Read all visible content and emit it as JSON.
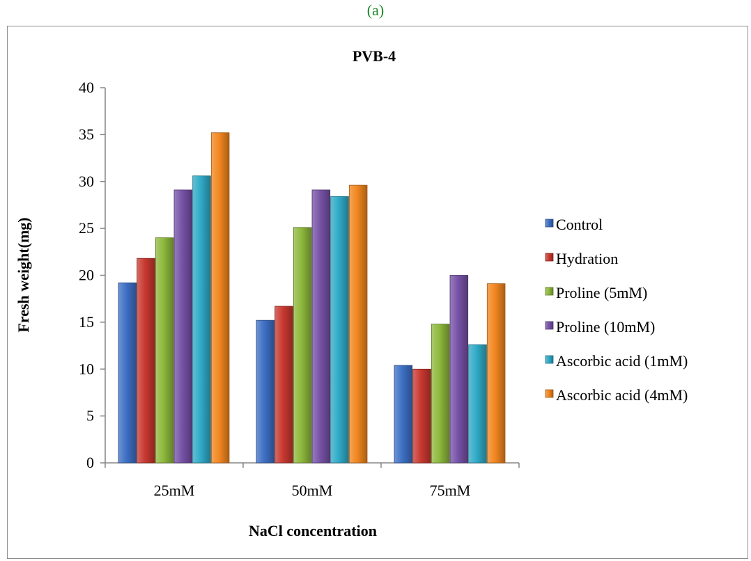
{
  "caption": "(a)",
  "chart_data": {
    "type": "bar",
    "title": "PVB-4",
    "xlabel": "NaCl concentration",
    "ylabel": "Fresh weight(mg)",
    "ylim": [
      0,
      40
    ],
    "yticks": [
      "0",
      "5",
      "10",
      "15",
      "20",
      "25",
      "30",
      "35",
      "40"
    ],
    "categories": [
      "25mM",
      "50mM",
      "75mM"
    ],
    "grid": false,
    "legend_position": "right",
    "series": [
      {
        "name": "Control",
        "color": "#3d6fc4",
        "values": [
          19.2,
          15.2,
          10.4
        ]
      },
      {
        "name": "Hydration",
        "color": "#c8382f",
        "values": [
          21.8,
          16.7,
          10.0
        ]
      },
      {
        "name": "Proline (5mM)",
        "color": "#8db83c",
        "values": [
          24.0,
          25.1,
          14.8
        ]
      },
      {
        "name": "Proline (10mM)",
        "color": "#7652a6",
        "values": [
          29.1,
          29.1,
          20.0
        ]
      },
      {
        "name": "Ascorbic acid (1mM)",
        "color": "#2faac7",
        "values": [
          30.6,
          28.4,
          12.6
        ]
      },
      {
        "name": "Ascorbic acid (4mM)",
        "color": "#f2861f",
        "values": [
          35.2,
          29.6,
          19.1
        ]
      }
    ]
  }
}
